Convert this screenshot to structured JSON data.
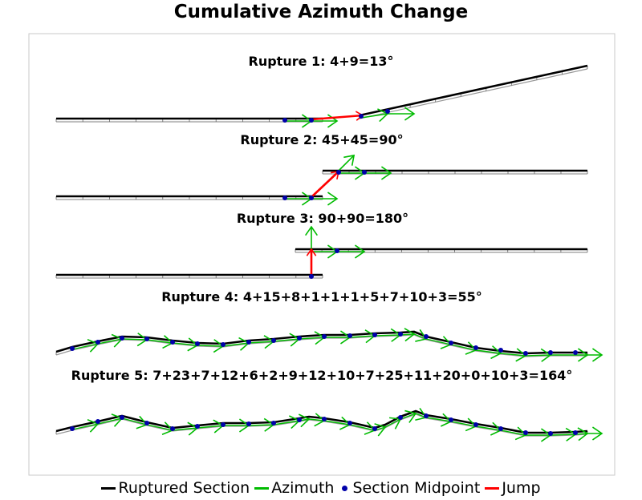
{
  "chart_data": {
    "type": "diagram",
    "title": "Cumulative Azimuth Change",
    "ruptures": [
      {
        "label": "Rupture 1: 4+9=13°"
      },
      {
        "label": "Rupture 2: 45+45=90°"
      },
      {
        "label": "Rupture 3: 90+90=180°"
      },
      {
        "label": "Rupture 4: 4+15+8+1+1+1+5+7+10+3=55°"
      },
      {
        "label": "Rupture 5: 7+23+7+12+6+2+9+12+10+7+25+11+20+0+10+3=164°"
      }
    ],
    "legend": [
      {
        "label": "Ruptured Section",
        "color": "#000000",
        "kind": "line"
      },
      {
        "label": "Azimuth",
        "color": "#00bb00",
        "kind": "line"
      },
      {
        "label": "Section Midpoint",
        "color": "#0000aa",
        "kind": "dot"
      },
      {
        "label": "Jump",
        "color": "#ff0000",
        "kind": "line"
      }
    ],
    "colors": {
      "trace": "#000000",
      "shadow": "#999999",
      "azimuth": "#00bb00",
      "midpoint": "#0000aa",
      "jump": "#ff0000",
      "frame": "#c8c8c8"
    }
  }
}
